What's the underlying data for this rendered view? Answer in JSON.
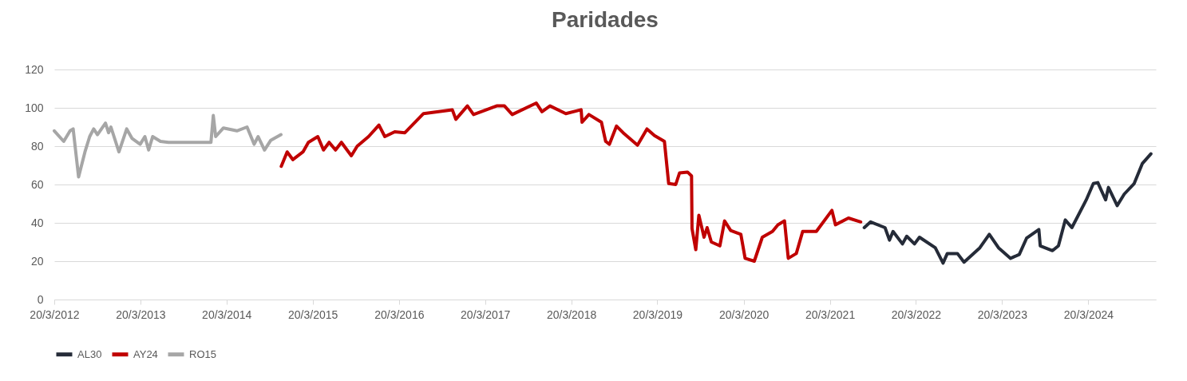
{
  "chart_data": {
    "type": "line",
    "title": "Paridades",
    "series": [
      {
        "name": "AL30",
        "color": "#252b38",
        "x": [
          "2021-08-13",
          "2021-09-09",
          "2021-11-09",
          "2021-11-28",
          "2021-12-13",
          "2022-01-22",
          "2022-02-09",
          "2022-03-14",
          "2022-04-04",
          "2022-06-10",
          "2022-07-13",
          "2022-07-31",
          "2022-09-12",
          "2022-10-10",
          "2022-12-16",
          "2023-01-25",
          "2023-03-05",
          "2023-04-25",
          "2023-06-01",
          "2023-07-02",
          "2023-08-23",
          "2023-08-29",
          "2023-10-20",
          "2023-11-14",
          "2023-12-13",
          "2024-01-10",
          "2024-03-11",
          "2024-04-10",
          "2024-04-29",
          "2024-06-01",
          "2024-06-13",
          "2024-07-20",
          "2024-08-19",
          "2024-09-30",
          "2024-11-04",
          "2024-12-10"
        ],
        "values": [
          37.5,
          40.5,
          37.5,
          31,
          35.5,
          29,
          33,
          29,
          32.5,
          27,
          19,
          24,
          24,
          19.5,
          27,
          34,
          27,
          21.5,
          23.5,
          32,
          36.5,
          28,
          25.5,
          28,
          41.5,
          37.5,
          52,
          60.5,
          61,
          52,
          58.5,
          49,
          55,
          60.5,
          71,
          76
        ]
      },
      {
        "name": "AY24",
        "color": "#c00000",
        "x": [
          "2014-11-07",
          "2014-12-02",
          "2014-12-26",
          "2015-02-07",
          "2015-03-02",
          "2015-04-11",
          "2015-05-05",
          "2015-05-29",
          "2015-06-25",
          "2015-07-20",
          "2015-08-31",
          "2015-09-25",
          "2015-11-12",
          "2015-12-26",
          "2016-01-20",
          "2016-03-02",
          "2016-04-14",
          "2016-07-02",
          "2016-11-01",
          "2016-11-16",
          "2017-01-04",
          "2017-01-30",
          "2017-05-08",
          "2017-06-10",
          "2017-07-13",
          "2017-10-23",
          "2017-11-16",
          "2017-12-20",
          "2018-02-25",
          "2018-05-01",
          "2018-05-05",
          "2018-06-03",
          "2018-07-26",
          "2018-08-13",
          "2018-08-29",
          "2018-09-28",
          "2018-10-26",
          "2018-12-26",
          "2019-02-04",
          "2019-03-08",
          "2019-04-19",
          "2019-05-07",
          "2019-06-06",
          "2019-06-22",
          "2019-07-26",
          "2019-08-12",
          "2019-08-14",
          "2019-08-30",
          "2019-09-12",
          "2019-10-04",
          "2019-10-17",
          "2019-11-04",
          "2019-12-10",
          "2019-12-30",
          "2020-01-25",
          "2020-03-08",
          "2020-03-26",
          "2020-05-04",
          "2020-06-07",
          "2020-07-20",
          "2020-08-12",
          "2020-09-09",
          "2020-09-25",
          "2020-10-29",
          "2020-11-25",
          "2021-01-22",
          "2021-03-29",
          "2021-04-13",
          "2021-06-07",
          "2021-07-29"
        ],
        "values": [
          69.5,
          77,
          73,
          77,
          82,
          85,
          78,
          82,
          78,
          82,
          75,
          80,
          85,
          91,
          85,
          87.5,
          87,
          97,
          99,
          94,
          101,
          96.5,
          101,
          101,
          96.5,
          102.5,
          98,
          101,
          97,
          99,
          92.5,
          96.5,
          92.5,
          82.5,
          81,
          90.5,
          87,
          80.5,
          89,
          85.5,
          82.5,
          60.5,
          60,
          66,
          66.5,
          64.5,
          37,
          26,
          44,
          32.5,
          37.5,
          30,
          28,
          41,
          36,
          34,
          21.5,
          20,
          32.5,
          35.5,
          39,
          41,
          21.5,
          24,
          35.5,
          35.5,
          46.5,
          39,
          42.5,
          40.5
        ]
      },
      {
        "name": "RO15",
        "color": "#a6a6a6",
        "x": [
          "2012-03-20",
          "2012-04-29",
          "2012-05-26",
          "2012-06-08",
          "2012-07-01",
          "2012-07-28",
          "2012-08-17",
          "2012-09-03",
          "2012-09-19",
          "2012-10-23",
          "2012-11-05",
          "2012-11-15",
          "2012-12-19",
          "2013-01-21",
          "2013-02-13",
          "2013-03-19",
          "2013-04-08",
          "2013-04-24",
          "2013-05-11",
          "2013-06-13",
          "2013-07-17",
          "2014-01-13",
          "2014-01-23",
          "2014-02-02",
          "2014-03-07",
          "2014-05-03",
          "2014-06-15",
          "2014-07-15",
          "2014-08-01",
          "2014-08-28",
          "2014-09-23",
          "2014-11-06"
        ],
        "values": [
          88,
          82.5,
          88,
          89,
          64,
          77,
          85,
          89,
          86,
          92,
          87,
          90,
          77,
          89,
          84,
          81,
          85,
          78,
          85,
          82.5,
          82,
          82,
          96,
          85,
          89.5,
          88,
          90,
          81,
          85,
          78,
          83,
          86
        ]
      }
    ],
    "xlim": [
      "2012-03-20",
      "2024-12-31"
    ],
    "xticks": [
      {
        "value": "2012-03-20",
        "label": "20/3/2012"
      },
      {
        "value": "2013-03-20",
        "label": "20/3/2013"
      },
      {
        "value": "2014-03-20",
        "label": "20/3/2014"
      },
      {
        "value": "2015-03-20",
        "label": "20/3/2015"
      },
      {
        "value": "2016-03-20",
        "label": "20/3/2016"
      },
      {
        "value": "2017-03-20",
        "label": "20/3/2017"
      },
      {
        "value": "2018-03-20",
        "label": "20/3/2018"
      },
      {
        "value": "2019-03-20",
        "label": "20/3/2019"
      },
      {
        "value": "2020-03-20",
        "label": "20/3/2020"
      },
      {
        "value": "2021-03-20",
        "label": "20/3/2021"
      },
      {
        "value": "2022-03-20",
        "label": "20/3/2022"
      },
      {
        "value": "2023-03-20",
        "label": "20/3/2023"
      },
      {
        "value": "2024-03-20",
        "label": "20/3/2024"
      }
    ],
    "ylim": [
      0,
      120
    ],
    "yticks": [
      0,
      20,
      40,
      60,
      80,
      100,
      120
    ],
    "grid": "y",
    "legend": "bottom",
    "marker": "none",
    "line_style": "solid"
  }
}
